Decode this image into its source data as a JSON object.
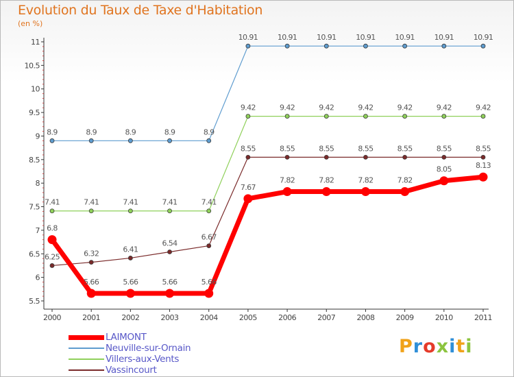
{
  "title": "Evolution du Taux de Taxe d'Habitation",
  "subtitle": "(en %)",
  "logo": {
    "text": "Proxiti",
    "letters": [
      {
        "ch": "P",
        "color": "#f0a21a"
      },
      {
        "ch": "r",
        "color": "#2f8fd8"
      },
      {
        "ch": "o",
        "color": "#e53b2a"
      },
      {
        "ch": "x",
        "color": "#8cc43f"
      },
      {
        "ch": "i",
        "color": "#2f8fd8"
      },
      {
        "ch": "t",
        "color": "#f0a21a"
      },
      {
        "ch": "i",
        "color": "#8cc43f"
      }
    ]
  },
  "chart_data": {
    "type": "line",
    "x": [
      "2000",
      "2001",
      "2002",
      "2003",
      "2004",
      "2005",
      "2006",
      "2007",
      "2008",
      "2009",
      "2010",
      "2011"
    ],
    "ylim": [
      5.5,
      11
    ],
    "yticks": [
      "5.5",
      "6",
      "6.5",
      "7",
      "7.5",
      "8",
      "8.5",
      "9",
      "9.5",
      "10",
      "10.5",
      "11"
    ],
    "grid": false,
    "legend_position": "bottom-left",
    "series": [
      {
        "name": "Neuville-sur-Ornain",
        "color": "#5e9ccf",
        "width": 1.2,
        "values": [
          8.9,
          8.9,
          8.9,
          8.9,
          8.9,
          10.91,
          10.91,
          10.91,
          10.91,
          10.91,
          10.91,
          10.91
        ],
        "labels": [
          "8.9",
          "8.9",
          "8.9",
          "8.9",
          "8.9",
          "10.91",
          "10.91",
          "10.91",
          "10.91",
          "10.91",
          "10.91",
          "10.91"
        ]
      },
      {
        "name": "Villers-aux-Vents",
        "color": "#8fd05a",
        "width": 1.2,
        "values": [
          7.41,
          7.41,
          7.41,
          7.41,
          7.41,
          9.42,
          9.42,
          9.42,
          9.42,
          9.42,
          9.42,
          9.42
        ],
        "labels": [
          "7.41",
          "7.41",
          "7.41",
          "7.41",
          "7.41",
          "9.42",
          "9.42",
          "9.42",
          "9.42",
          "9.42",
          "9.42",
          "9.42"
        ]
      },
      {
        "name": "Vassincourt",
        "color": "#7a2a2a",
        "width": 1.2,
        "values": [
          6.25,
          6.32,
          6.41,
          6.54,
          6.67,
          8.55,
          8.55,
          8.55,
          8.55,
          8.55,
          8.55,
          8.55
        ],
        "labels": [
          "6.25",
          "6.32",
          "6.41",
          "6.54",
          "6.67",
          "8.55",
          "8.55",
          "8.55",
          "8.55",
          "8.55",
          "8.55",
          "8.55"
        ]
      },
      {
        "name": "LAIMONT",
        "color": "#ff0000",
        "width": 7,
        "values": [
          6.8,
          5.66,
          5.66,
          5.66,
          5.66,
          7.67,
          7.82,
          7.82,
          7.82,
          7.82,
          8.05,
          8.13
        ],
        "labels": [
          "6.8",
          "5.66",
          "5.66",
          "5.66",
          "5.66",
          "7.67",
          "7.82",
          "7.82",
          "7.82",
          "7.82",
          "8.05",
          "8.13"
        ]
      }
    ],
    "legend_order": [
      "LAIMONT",
      "Neuville-sur-Ornain",
      "Villers-aux-Vents",
      "Vassincourt"
    ]
  }
}
